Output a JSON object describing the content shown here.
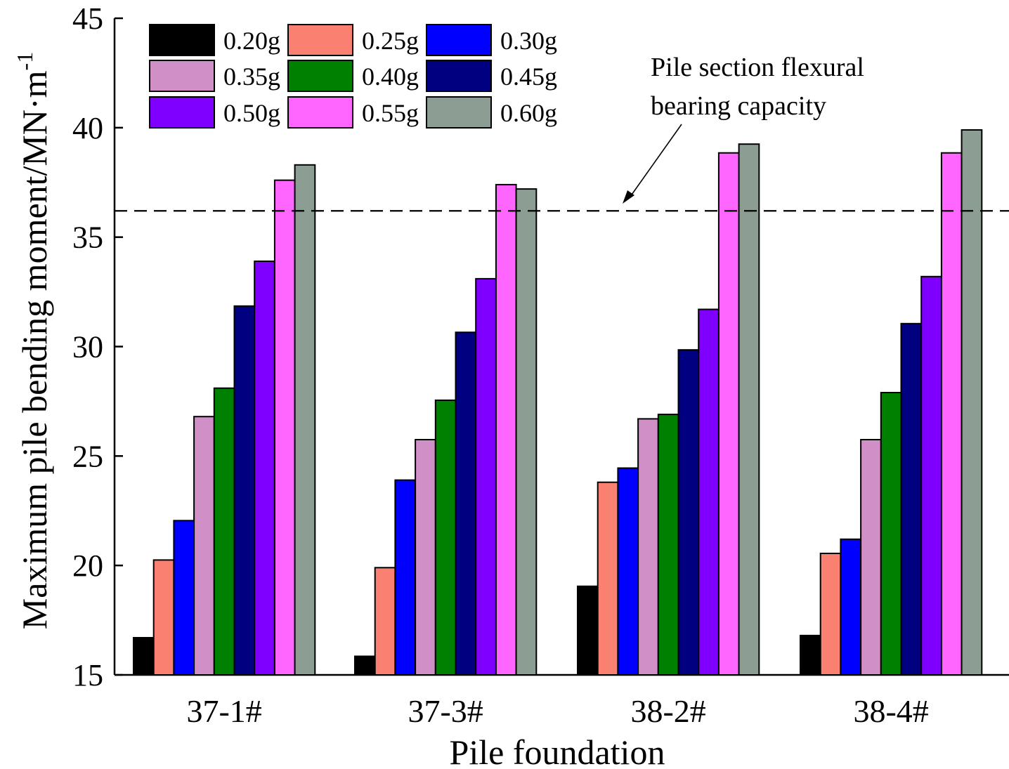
{
  "chart_data": {
    "type": "bar",
    "title": "",
    "xlabel": "Pile foundation",
    "ylabel": "Maximum pile bending moment/MN·m",
    "ylabel_superscript": "-1",
    "ylim": [
      15,
      45
    ],
    "yticks": [
      15,
      20,
      25,
      30,
      35,
      40,
      45
    ],
    "grid": false,
    "legend_position": "top-left",
    "categories": [
      "37-1#",
      "37-3#",
      "38-2#",
      "38-4#"
    ],
    "series": [
      {
        "name": "0.20g",
        "color": "#000000",
        "values": [
          16.7,
          15.85,
          19.05,
          16.8
        ]
      },
      {
        "name": "0.25g",
        "color": "#fa8072",
        "values": [
          20.25,
          19.9,
          23.8,
          20.55
        ]
      },
      {
        "name": "0.30g",
        "color": "#0000ff",
        "values": [
          22.05,
          23.9,
          24.45,
          21.2
        ]
      },
      {
        "name": "0.35g",
        "color": "#d08fc6",
        "values": [
          26.8,
          25.75,
          26.7,
          25.75
        ]
      },
      {
        "name": "0.40g",
        "color": "#008000",
        "values": [
          28.1,
          27.55,
          26.9,
          27.9
        ]
      },
      {
        "name": "0.45g",
        "color": "#000080",
        "values": [
          31.85,
          30.65,
          29.85,
          31.05
        ]
      },
      {
        "name": "0.50g",
        "color": "#8000ff",
        "values": [
          33.9,
          33.1,
          31.7,
          33.2
        ]
      },
      {
        "name": "0.55g",
        "color": "#ff66ff",
        "values": [
          37.6,
          37.4,
          38.85,
          38.85
        ]
      },
      {
        "name": "0.60g",
        "color": "#8c9e93",
        "values": [
          38.3,
          37.2,
          39.25,
          39.9
        ]
      }
    ],
    "reference_line": {
      "value": 36.2,
      "style": "dashed"
    },
    "annotation": {
      "lines": [
        "Pile section flexural",
        "bearing capacity"
      ]
    }
  }
}
